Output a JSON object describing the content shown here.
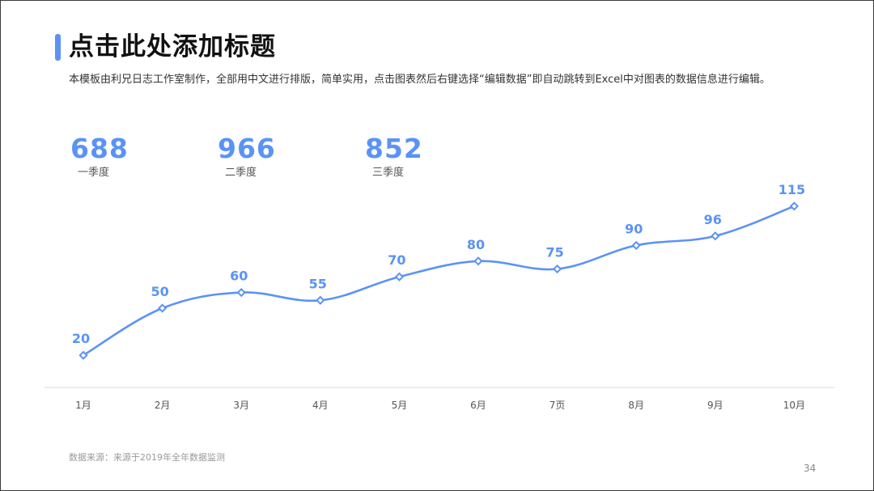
{
  "header": {
    "title": "点击此处添加标题",
    "subtitle": "本模板由利兄日志工作室制作，全部用中文进行排版，简单实用，点击图表然后右键选择“编辑数据”即自动跳转到Excel中对图表的数据信息进行编辑。"
  },
  "kpis": [
    {
      "value": "688",
      "label": "一季度"
    },
    {
      "value": "966",
      "label": "二季度"
    },
    {
      "value": "852",
      "label": "三季度"
    }
  ],
  "chart_data": {
    "type": "line",
    "categories": [
      "1月",
      "2月",
      "3月",
      "4月",
      "5月",
      "6月",
      "7页",
      "8月",
      "9月",
      "10月"
    ],
    "values": [
      20,
      50,
      60,
      55,
      70,
      80,
      75,
      90,
      96,
      115
    ],
    "ylim": [
      0,
      120
    ],
    "grid": false,
    "smooth": true,
    "markers": "diamond",
    "data_labels": true,
    "colors": {
      "line": "#5b93f5",
      "axis": "#d9d9d9",
      "tick_text": "#555555"
    }
  },
  "footer": {
    "source": "数据来源：来源于2019年全年数据监测",
    "page_number": "34"
  }
}
